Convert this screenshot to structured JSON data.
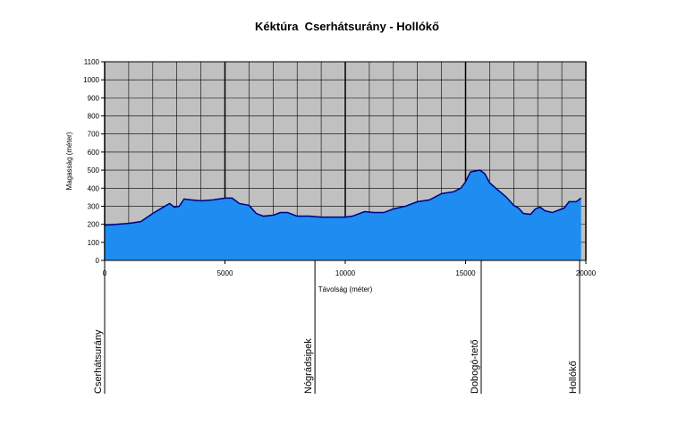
{
  "chart_data": {
    "type": "area",
    "title": "Kéktúra  Cserhátsurány - Hollókő",
    "xlabel": "Távolság (méter)",
    "ylabel": "Magasság (méter)",
    "x": [
      0,
      500,
      1000,
      1500,
      2000,
      2500,
      2700,
      2900,
      3100,
      3300,
      3600,
      4000,
      4500,
      5000,
      5300,
      5600,
      6000,
      6300,
      6600,
      7000,
      7300,
      7600,
      8000,
      8500,
      9000,
      9500,
      10000,
      10300,
      10800,
      11200,
      11600,
      12000,
      12500,
      13000,
      13500,
      14000,
      14500,
      14800,
      15000,
      15200,
      15600,
      15800,
      16000,
      16300,
      16700,
      17000,
      17200,
      17400,
      17700,
      17900,
      18100,
      18300,
      18600,
      18900,
      19100,
      19300,
      19600,
      19800
    ],
    "values": [
      195,
      200,
      205,
      215,
      260,
      300,
      315,
      295,
      300,
      340,
      335,
      330,
      335,
      345,
      345,
      315,
      305,
      260,
      245,
      250,
      265,
      265,
      245,
      245,
      240,
      240,
      240,
      245,
      270,
      265,
      265,
      285,
      300,
      325,
      335,
      370,
      380,
      400,
      435,
      490,
      500,
      480,
      430,
      395,
      350,
      305,
      290,
      260,
      255,
      285,
      295,
      275,
      265,
      280,
      290,
      325,
      325,
      345
    ],
    "color": "#1e8cf0",
    "line_color": "#000080",
    "background": "#c0c0c0",
    "xlim": [
      0,
      20000
    ],
    "xticks": [
      0,
      5000,
      10000,
      15000,
      20000
    ],
    "xgrid_step": 1000,
    "ylim": [
      0,
      1100
    ],
    "yticks": [
      0,
      100,
      200,
      300,
      400,
      500,
      600,
      700,
      800,
      900,
      1000,
      1100
    ],
    "grid": true,
    "annotations": [
      {
        "text": "Cserhátsurány",
        "x": 0
      },
      {
        "text": "Nógrádsipek",
        "x": 8740
      },
      {
        "text": "Dobogó-tető",
        "x": 15650
      },
      {
        "text": "Hollókő",
        "x": 19740
      }
    ]
  }
}
